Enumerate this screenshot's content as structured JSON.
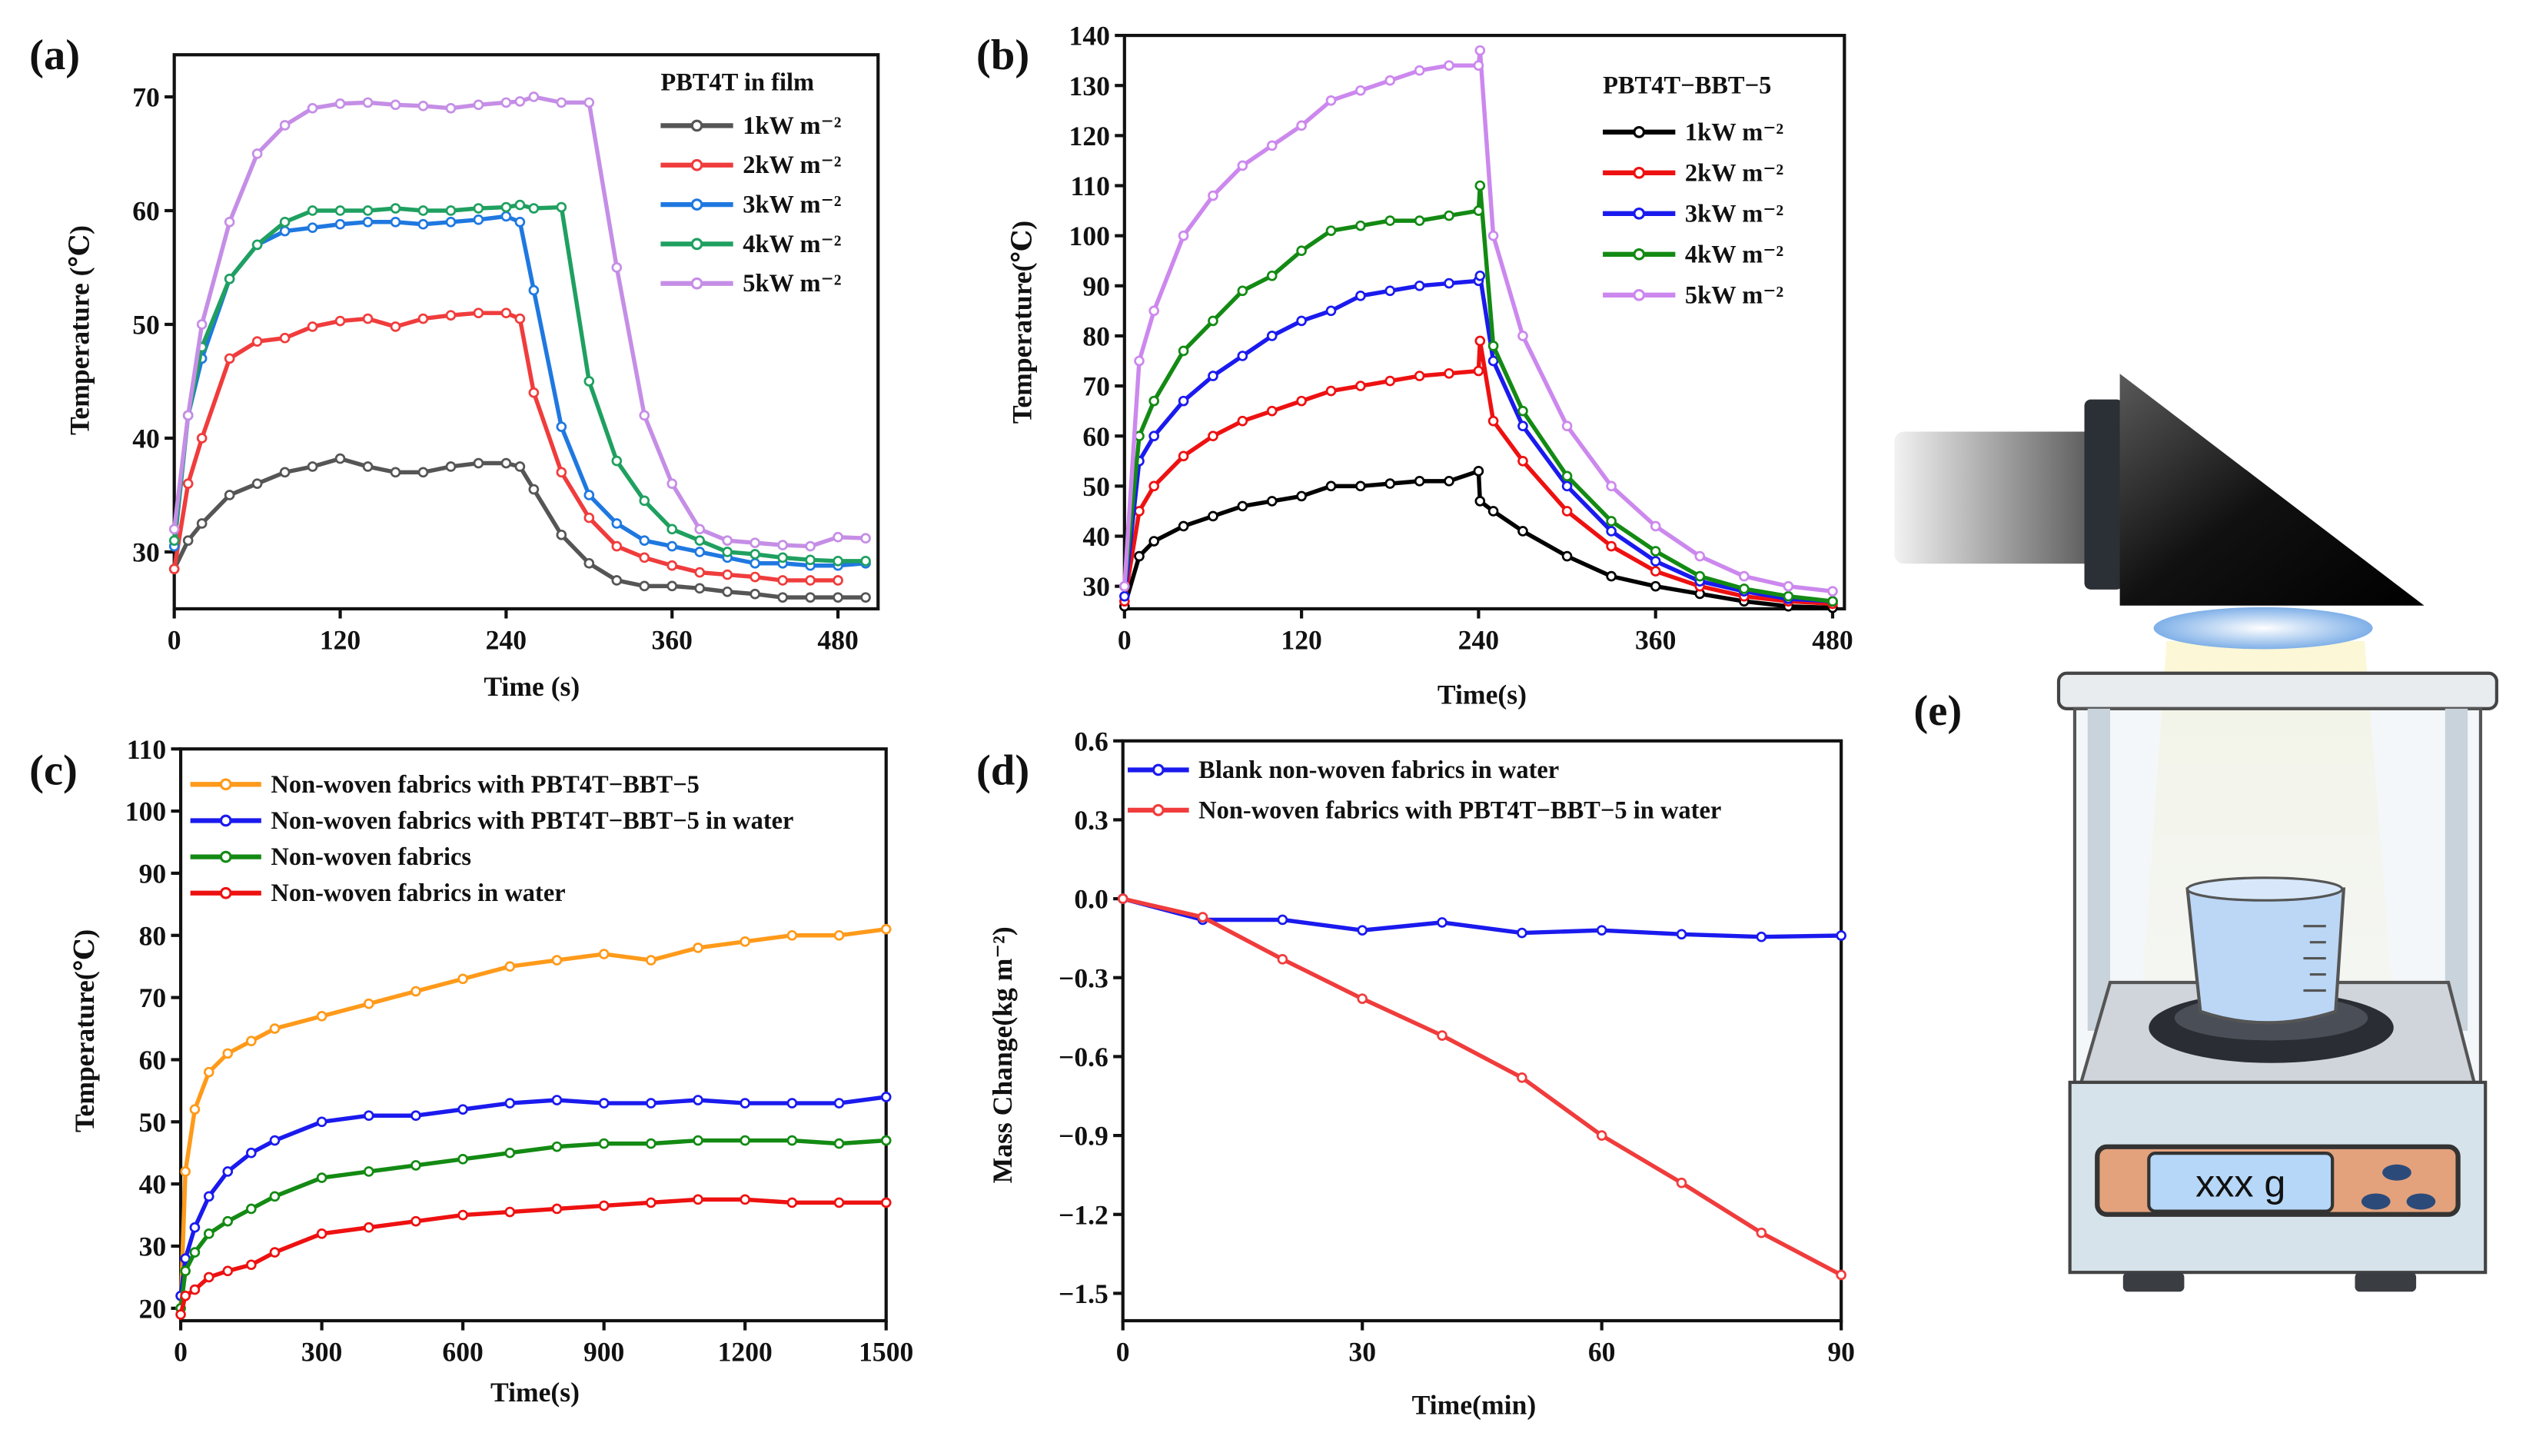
{
  "panel_labels": [
    "(a)",
    "(b)",
    "(c)",
    "(d)",
    "(e)"
  ],
  "balance_display": "xxx g",
  "chart_data": [
    {
      "id": "a",
      "type": "line",
      "title": "PBT4T in film",
      "xlabel": "Time (s)",
      "ylabel": "Temperature (℃)",
      "xlim": [
        0,
        509
      ],
      "ylim": [
        25,
        73.7
      ],
      "xticks": [
        0,
        120,
        240,
        360,
        480
      ],
      "yticks": [
        30,
        40,
        50,
        60,
        70
      ],
      "x": [
        0,
        10,
        20,
        40,
        60,
        80,
        100,
        120,
        140,
        160,
        180,
        200,
        220,
        240,
        250,
        260,
        280,
        300,
        320,
        340,
        360,
        380,
        400,
        420,
        440,
        460,
        480,
        500
      ],
      "series": [
        {
          "name": "1kW m⁻²",
          "color": "#555555",
          "values": [
            28.5,
            31,
            32.5,
            35,
            36,
            37,
            37.5,
            38.2,
            37.5,
            37,
            37,
            37.5,
            37.8,
            37.8,
            37.5,
            35.5,
            31.5,
            29,
            27.5,
            27,
            27,
            26.8,
            26.5,
            26.3,
            26,
            26,
            26,
            26
          ]
        },
        {
          "name": "2kW m⁻²",
          "color": "#f03c3c",
          "values": [
            28.5,
            36,
            40,
            47,
            48.5,
            48.8,
            49.8,
            50.3,
            50.5,
            49.8,
            50.5,
            50.8,
            51,
            51,
            50.5,
            44,
            37,
            33,
            30.5,
            29.5,
            28.8,
            28.2,
            28,
            27.8,
            27.5,
            27.5,
            27.5,
            null
          ]
        },
        {
          "name": "3kW m⁻²",
          "color": "#1f78e0",
          "values": [
            30.5,
            42,
            47,
            54,
            57,
            58.2,
            58.5,
            58.8,
            59,
            59,
            58.8,
            59,
            59.2,
            59.5,
            59,
            53,
            41,
            35,
            32.5,
            31,
            30.5,
            30,
            29.5,
            29,
            29,
            28.8,
            28.8,
            29
          ]
        },
        {
          "name": "4kW m⁻²",
          "color": "#1fa060",
          "values": [
            31,
            42,
            48,
            54,
            57,
            59,
            60,
            60,
            60,
            60.2,
            60,
            60,
            60.2,
            60.3,
            60.5,
            60.2,
            60.3,
            45,
            38,
            34.5,
            32,
            31,
            30,
            29.8,
            29.5,
            29.3,
            29.2,
            29.2
          ]
        },
        {
          "name": "5kW m⁻²",
          "color": "#c58ee6",
          "values": [
            32,
            42,
            50,
            59,
            65,
            67.5,
            69,
            69.4,
            69.5,
            69.3,
            69.2,
            69,
            69.3,
            69.5,
            69.6,
            70,
            69.5,
            69.5,
            55,
            42,
            36,
            32,
            31,
            30.8,
            30.6,
            30.5,
            31.3,
            31.2
          ]
        }
      ]
    },
    {
      "id": "b",
      "type": "line",
      "title": "PBT4T−BBT−5",
      "xlabel": "Time(s)",
      "ylabel": "Temperature(℃)",
      "xlim": [
        0,
        488
      ],
      "ylim": [
        25.5,
        140
      ],
      "xticks": [
        0,
        120,
        240,
        360,
        480
      ],
      "yticks": [
        30,
        40,
        50,
        60,
        70,
        80,
        90,
        100,
        110,
        120,
        130,
        140
      ],
      "x": [
        0,
        10,
        20,
        40,
        60,
        80,
        100,
        120,
        140,
        160,
        180,
        200,
        220,
        240,
        241,
        250,
        270,
        300,
        330,
        360,
        390,
        420,
        450,
        480
      ],
      "series": [
        {
          "name": "1kW m⁻²",
          "color": "#000000",
          "values": [
            26,
            36,
            39,
            42,
            44,
            46,
            47,
            48,
            50,
            50,
            50.5,
            51,
            51,
            53,
            47,
            45,
            41,
            36,
            32,
            30,
            28.5,
            27,
            26,
            25.7
          ]
        },
        {
          "name": "2kW m⁻²",
          "color": "#ee1111",
          "values": [
            27,
            45,
            50,
            56,
            60,
            63,
            65,
            67,
            69,
            70,
            71,
            72,
            72.5,
            73,
            79,
            63,
            55,
            45,
            38,
            33,
            30,
            28,
            27,
            26.5
          ]
        },
        {
          "name": "3kW m⁻²",
          "color": "#1a1aee",
          "values": [
            28,
            55,
            60,
            67,
            72,
            76,
            80,
            83,
            85,
            88,
            89,
            90,
            90.5,
            91,
            92,
            75,
            62,
            50,
            41,
            35,
            31,
            29,
            27.5,
            27
          ]
        },
        {
          "name": "4kW m⁻²",
          "color": "#138a13",
          "values": [
            30,
            60,
            67,
            77,
            83,
            89,
            92,
            97,
            101,
            102,
            103,
            103,
            104,
            105,
            110,
            78,
            65,
            52,
            43,
            37,
            32,
            29.5,
            28,
            27
          ]
        },
        {
          "name": "5kW m⁻²",
          "color": "#cc88ee",
          "values": [
            30,
            75,
            85,
            100,
            108,
            114,
            118,
            122,
            127,
            129,
            131,
            133,
            134,
            134,
            137,
            100,
            80,
            62,
            50,
            42,
            36,
            32,
            30,
            29
          ]
        }
      ]
    },
    {
      "id": "c",
      "type": "line",
      "title": "",
      "xlabel": "Time(s)",
      "ylabel": "Temperature(℃)",
      "xlim": [
        0,
        1500
      ],
      "ylim": [
        18,
        110
      ],
      "xticks": [
        0,
        300,
        600,
        900,
        1200,
        1500
      ],
      "yticks": [
        20,
        30,
        40,
        50,
        60,
        70,
        80,
        90,
        100,
        110
      ],
      "x": [
        0,
        10,
        30,
        60,
        100,
        150,
        200,
        300,
        400,
        500,
        600,
        700,
        800,
        900,
        1000,
        1100,
        1200,
        1300,
        1400,
        1500
      ],
      "series": [
        {
          "name": "Non-woven fabrics with PBT4T−BBT−5",
          "color": "#ff9a1a",
          "values": [
            20,
            42,
            52,
            58,
            61,
            63,
            65,
            67,
            69,
            71,
            73,
            75,
            76,
            77,
            76,
            78,
            79,
            80,
            80,
            81
          ]
        },
        {
          "name": "Non-woven fabrics with PBT4T−BBT−5 in water",
          "color": "#1a1aee",
          "values": [
            22,
            28,
            33,
            38,
            42,
            45,
            47,
            50,
            51,
            51,
            52,
            53,
            53.5,
            53,
            53,
            53.5,
            53,
            53,
            53,
            54
          ]
        },
        {
          "name": "Non-woven fabrics",
          "color": "#138a13",
          "values": [
            20,
            26,
            29,
            32,
            34,
            36,
            38,
            41,
            42,
            43,
            44,
            45,
            46,
            46.5,
            46.5,
            47,
            47,
            47,
            46.5,
            47
          ]
        },
        {
          "name": "Non-woven fabrics in water",
          "color": "#ee1111",
          "values": [
            19,
            22,
            23,
            25,
            26,
            27,
            29,
            32,
            33,
            34,
            35,
            35.5,
            36,
            36.5,
            37,
            37.5,
            37.5,
            37,
            37,
            37
          ]
        }
      ]
    },
    {
      "id": "d",
      "type": "line",
      "title": "",
      "xlabel": "Time(min)",
      "ylabel": "Mass Change(kg m⁻²)",
      "xlim": [
        0,
        90
      ],
      "ylim": [
        -1.604,
        0.6
      ],
      "xticks": [
        0,
        30,
        60,
        90
      ],
      "yticks": [
        0.6,
        0.3,
        0.0,
        -0.3,
        -0.6,
        -0.9,
        -1.2,
        -1.5
      ],
      "ytick_labels": [
        "0.6",
        "0.3",
        "0.0",
        "−0.3",
        "−0.6",
        "−0.9",
        "−1.2",
        "−1.5"
      ],
      "x": [
        0,
        10,
        20,
        30,
        40,
        50,
        60,
        70,
        80,
        90
      ],
      "series": [
        {
          "name": "Blank non-woven fabrics in water",
          "color": "#1a1aee",
          "values": [
            0,
            -0.08,
            -0.08,
            -0.12,
            -0.09,
            -0.13,
            -0.12,
            -0.135,
            -0.145,
            -0.14
          ]
        },
        {
          "name": "Non-woven fabrics with PBT4T−BBT−5 in water",
          "color": "#f03c3c",
          "values": [
            0,
            -0.07,
            -0.23,
            -0.38,
            -0.52,
            -0.68,
            -0.9,
            -1.08,
            -1.27,
            -1.43
          ]
        }
      ]
    }
  ]
}
